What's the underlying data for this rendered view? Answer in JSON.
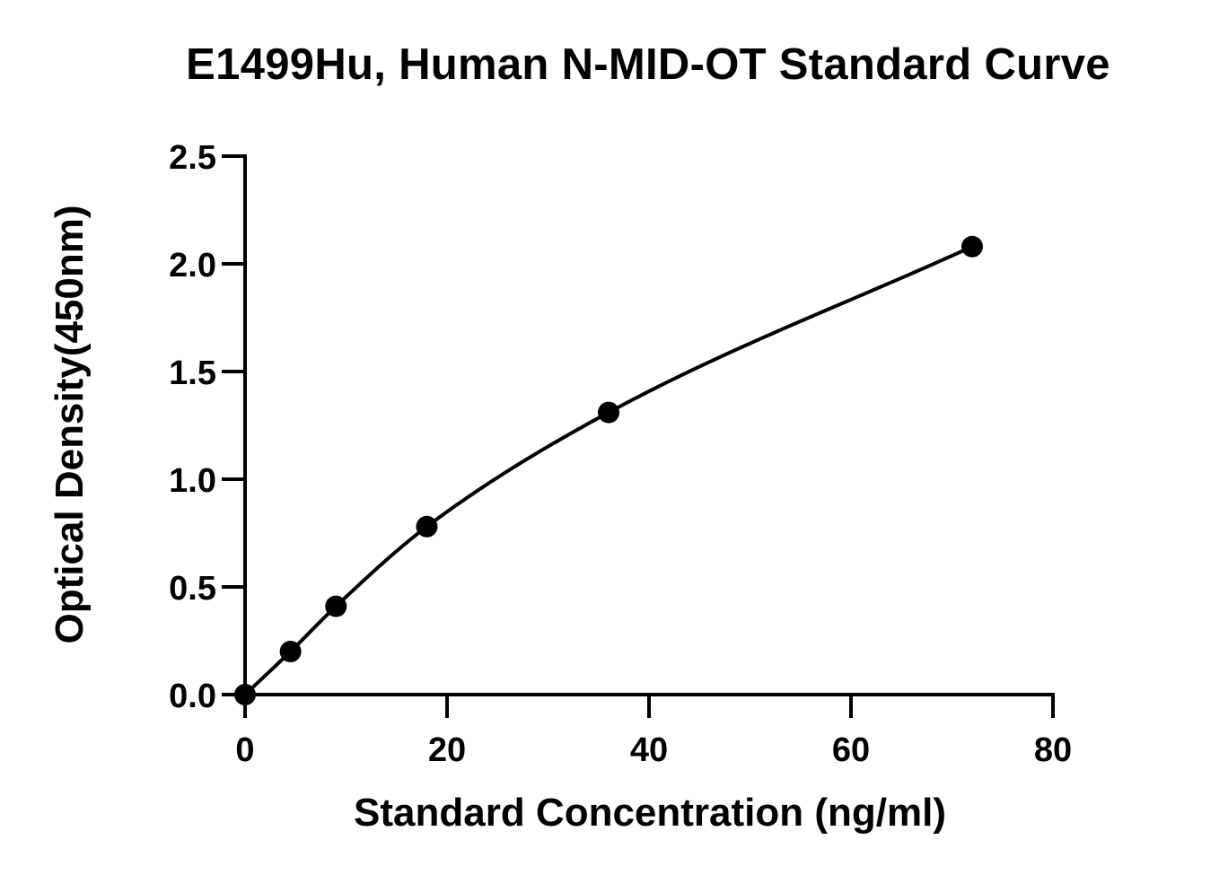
{
  "chart_data": {
    "type": "scatter",
    "title": "E1499Hu, Human N-MID-OT Standard Curve",
    "xlabel": "Standard Concentration (ng/ml)",
    "ylabel": "Optical Density(450nm)",
    "xlim": [
      0,
      80
    ],
    "ylim": [
      0,
      2.5
    ],
    "x_ticks": [
      "0",
      "20",
      "40",
      "60",
      "80"
    ],
    "y_ticks": [
      "0.0",
      "0.5",
      "1.0",
      "1.5",
      "2.0",
      "2.5"
    ],
    "grid": false,
    "legend": "none",
    "fit_curve": true,
    "series": [
      {
        "x": [
          0,
          4.5,
          9,
          18,
          36,
          72
        ],
        "y": [
          0.0,
          0.2,
          0.41,
          0.78,
          1.31,
          2.08
        ]
      }
    ],
    "colors": {
      "points": "#000000",
      "curve": "#000000",
      "axes": "#000000"
    }
  }
}
